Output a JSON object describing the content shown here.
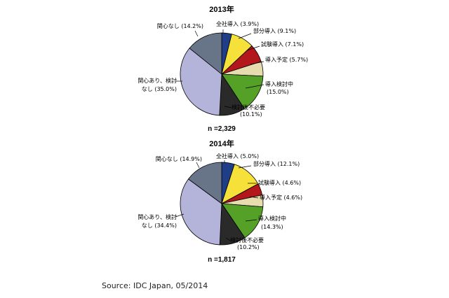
{
  "chart_data": [
    {
      "type": "pie",
      "title": "2013年",
      "n_label": "n =2,329",
      "slices": [
        {
          "name": "全社導入",
          "value": 3.9,
          "label": "全社導入 (3.9%)",
          "color": "#1f3e87"
        },
        {
          "name": "部分導入",
          "value": 9.1,
          "label": "部分導入 (9.1%)",
          "color": "#f5e13a"
        },
        {
          "name": "試験導入",
          "value": 7.1,
          "label": "試験導入 (7.1%)",
          "color": "#b4171b"
        },
        {
          "name": "導入予定",
          "value": 5.7,
          "label": "導入予定 (5.7%)",
          "color": "#e6dcae"
        },
        {
          "name": "導入検討中",
          "value": 15.0,
          "label": "導入検討中",
          "label2": "(15.0%)",
          "color": "#55a027"
        },
        {
          "name": "検討後不必要",
          "value": 10.1,
          "label": "検討後不必要",
          "label2": "(10.1%)",
          "color": "#2a2a2a"
        },
        {
          "name": "関心あり、検討なし",
          "value": 35.0,
          "label": "関心あり、検討",
          "label2": "なし (35.0%)",
          "color": "#b4b3d9"
        },
        {
          "name": "関心なし",
          "value": 14.2,
          "label": "関心なし (14.2%)",
          "color": "#687488"
        }
      ]
    },
    {
      "type": "pie",
      "title": "2014年",
      "n_label": "n =1,817",
      "slices": [
        {
          "name": "全社導入",
          "value": 5.0,
          "label": "全社導入 (5.0%)",
          "color": "#1f3e87"
        },
        {
          "name": "部分導入",
          "value": 12.1,
          "label": "部分導入 (12.1%)",
          "color": "#f5e13a"
        },
        {
          "name": "試験導入",
          "value": 4.6,
          "label": "試験導入 (4.6%)",
          "color": "#b4171b"
        },
        {
          "name": "導入予定",
          "value": 4.6,
          "label": "導入予定 (4.6%)",
          "color": "#e6dcae"
        },
        {
          "name": "導入検討中",
          "value": 14.3,
          "label": "導入検討中",
          "label2": "(14.3%)",
          "color": "#55a027"
        },
        {
          "name": "検討後不必要",
          "value": 10.2,
          "label": "検討後不必要",
          "label2": "(10.2%)",
          "color": "#2a2a2a"
        },
        {
          "name": "関心あり、検討なし",
          "value": 34.4,
          "label": "関心あり、検討",
          "label2": "なし (34.4%)",
          "color": "#b4b3d9"
        },
        {
          "name": "関心なし",
          "value": 14.9,
          "label": "関心なし (14.9%)",
          "color": "#687488"
        }
      ]
    }
  ],
  "source": "Source: IDC Japan, 05/2014"
}
